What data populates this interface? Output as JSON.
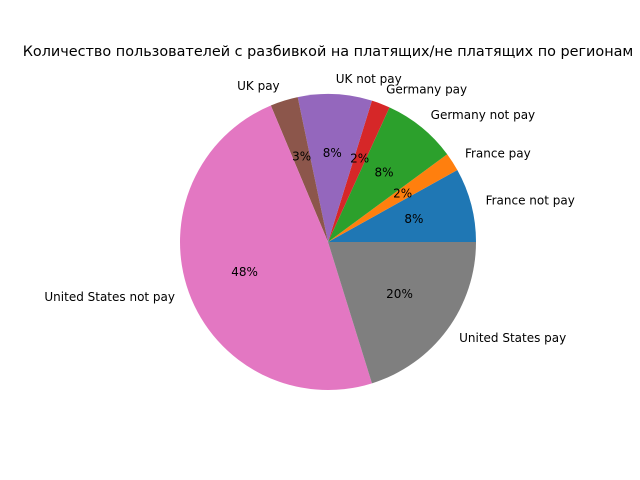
{
  "chart_data": {
    "type": "pie",
    "title": "Количество пользователей с разбивкой на платящих/не платящих по регионам",
    "start_angle": 0,
    "direction": "counterclockwise",
    "categories": [
      "France not pay",
      "France pay",
      "Germany not pay",
      "Germany pay",
      "UK not pay",
      "UK pay",
      "United States not pay",
      "United States pay"
    ],
    "values": [
      8,
      2,
      8,
      2,
      8,
      3,
      48,
      20
    ],
    "percent_labels": [
      "8%",
      "2%",
      "8%",
      "2%",
      "8%",
      "3%",
      "48%",
      "20%"
    ],
    "colors": [
      "#1f77b4",
      "#ff7f0e",
      "#2ca02c",
      "#d62728",
      "#9467bd",
      "#8c564b",
      "#e377c2",
      "#7f7f7f"
    ]
  }
}
